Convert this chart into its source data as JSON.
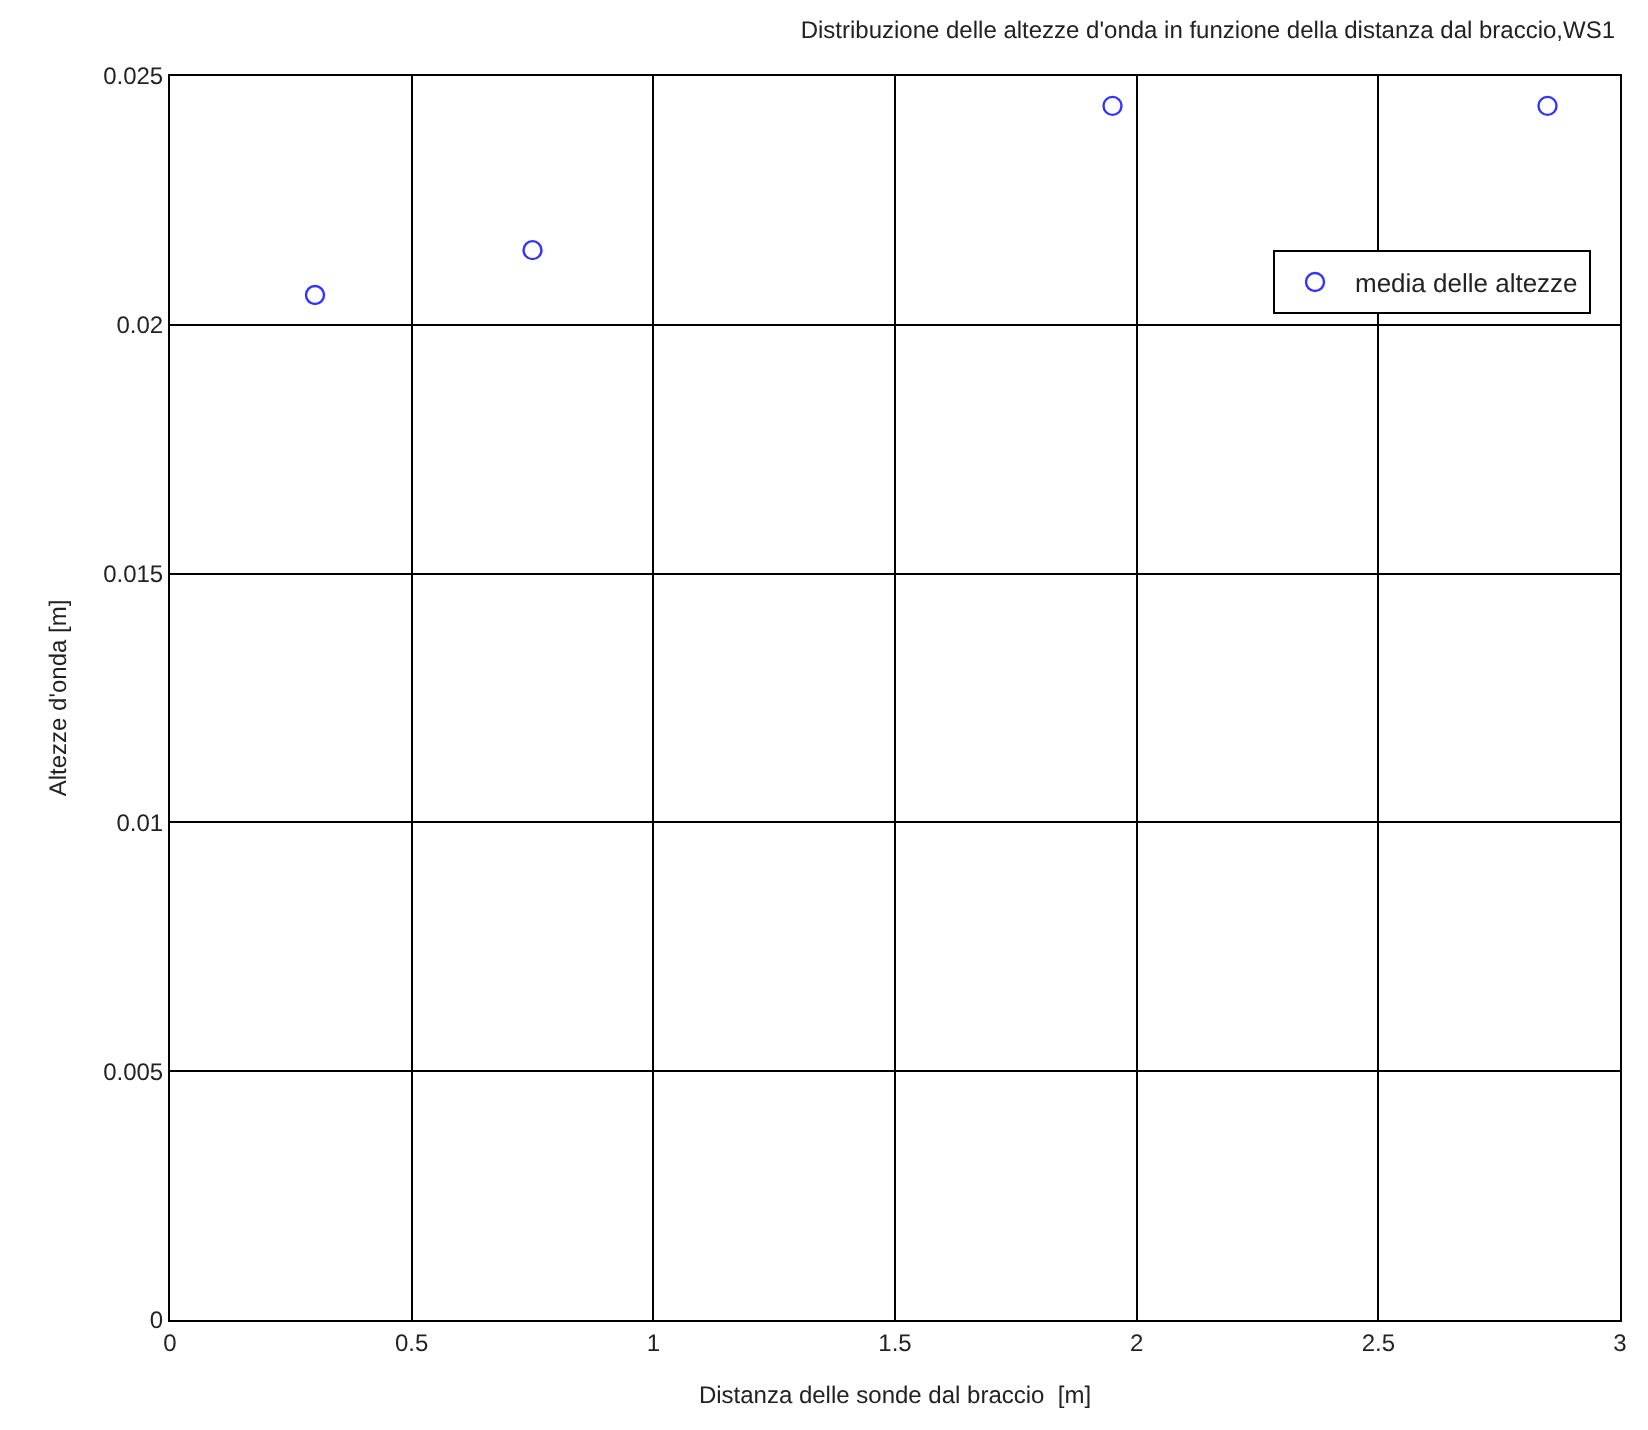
{
  "chart_data": {
    "type": "scatter",
    "title": "Distribuzione delle altezze d'onda in funzione della distanza dal braccio,WS1",
    "xlabel": "Distanza delle sonde dal braccio  [m]",
    "ylabel": "Altezze d'onda [m]",
    "series": [
      {
        "name": "media delle altezze",
        "color": "#3333ff",
        "x": [
          0.3,
          0.75,
          1.95,
          2.85
        ],
        "values": [
          0.0206,
          0.0215,
          0.0244,
          0.0244
        ]
      }
    ],
    "xlim": [
      0,
      3
    ],
    "xticks": [
      0,
      0.5,
      1,
      1.5,
      2,
      2.5,
      3
    ],
    "ylim": [
      0,
      0.025
    ],
    "yticks": [
      0,
      0.005,
      0.01,
      0.015,
      0.02,
      0.025
    ],
    "grid": true,
    "legend": "top right",
    "marker": "circle"
  }
}
